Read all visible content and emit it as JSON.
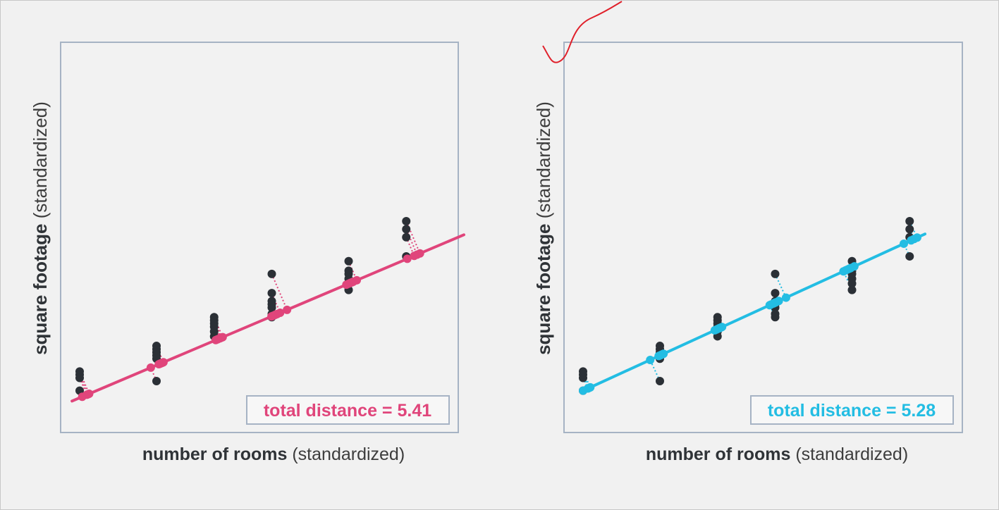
{
  "chart_data": [
    {
      "type": "scatter",
      "panel": "left",
      "xlabel_bold": "number of rooms",
      "xlabel_rest": "(standardized)",
      "ylabel_bold": "square footage",
      "ylabel_rest": "(standardized)",
      "annotation": "total distance = 5.41",
      "line_color": "#e0457b",
      "line": {
        "x1": -0.2,
        "y1": -1.25,
        "x2": 10.0,
        "y2": 9.15
      },
      "points": [
        [
          0,
          0.6
        ],
        [
          0,
          0.4
        ],
        [
          0,
          0.2
        ],
        [
          0,
          -0.6
        ],
        [
          2,
          2.2
        ],
        [
          2,
          2.0
        ],
        [
          2,
          1.8
        ],
        [
          2,
          1.6
        ],
        [
          2,
          1.4
        ],
        [
          2,
          0.0
        ],
        [
          3.5,
          4.0
        ],
        [
          3.5,
          3.8
        ],
        [
          3.5,
          3.6
        ],
        [
          3.5,
          3.4
        ],
        [
          3.5,
          3.1
        ],
        [
          3.5,
          2.8
        ],
        [
          5.0,
          6.7
        ],
        [
          5.0,
          5.5
        ],
        [
          5.0,
          5.0
        ],
        [
          5.0,
          4.8
        ],
        [
          5.0,
          4.6
        ],
        [
          5.0,
          4.2
        ],
        [
          5.0,
          4.0
        ],
        [
          7.0,
          7.5
        ],
        [
          7.0,
          6.9
        ],
        [
          7.0,
          6.7
        ],
        [
          7.0,
          6.4
        ],
        [
          7.0,
          6.1
        ],
        [
          7.0,
          5.7
        ],
        [
          8.5,
          10.0
        ],
        [
          8.5,
          9.5
        ],
        [
          8.5,
          9.0
        ],
        [
          8.5,
          7.8
        ]
      ],
      "projection": "perpendicular"
    },
    {
      "type": "scatter",
      "panel": "right",
      "xlabel_bold": "number of rooms",
      "xlabel_rest": "(standardized)",
      "ylabel_bold": "square footage",
      "ylabel_rest": "(standardized)",
      "annotation": "total distance = 5.28",
      "line_color": "#23bde3",
      "line": {
        "x1": 0.0,
        "y1": -0.6,
        "x2": 8.9,
        "y2": 9.2
      },
      "points": [
        [
          0,
          0.6
        ],
        [
          0,
          0.4
        ],
        [
          0,
          0.2
        ],
        [
          0,
          -0.6
        ],
        [
          2,
          2.2
        ],
        [
          2,
          2.0
        ],
        [
          2,
          1.8
        ],
        [
          2,
          1.6
        ],
        [
          2,
          1.4
        ],
        [
          2,
          0.0
        ],
        [
          3.5,
          4.0
        ],
        [
          3.5,
          3.8
        ],
        [
          3.5,
          3.6
        ],
        [
          3.5,
          3.4
        ],
        [
          3.5,
          3.1
        ],
        [
          3.5,
          2.8
        ],
        [
          5.0,
          6.7
        ],
        [
          5.0,
          5.5
        ],
        [
          5.0,
          5.0
        ],
        [
          5.0,
          4.8
        ],
        [
          5.0,
          4.6
        ],
        [
          5.0,
          4.2
        ],
        [
          5.0,
          4.0
        ],
        [
          7.0,
          7.5
        ],
        [
          7.0,
          6.9
        ],
        [
          7.0,
          6.7
        ],
        [
          7.0,
          6.4
        ],
        [
          7.0,
          6.1
        ],
        [
          7.0,
          5.7
        ],
        [
          8.5,
          10.0
        ],
        [
          8.5,
          9.5
        ],
        [
          8.5,
          9.0
        ],
        [
          8.5,
          7.8
        ]
      ],
      "projection": "perpendicular"
    }
  ],
  "colors": {
    "point": "#2b3036",
    "panel_border": "#a6b3c4",
    "panel_fill": "#f2f2f2",
    "scribble": "#e0202a"
  }
}
